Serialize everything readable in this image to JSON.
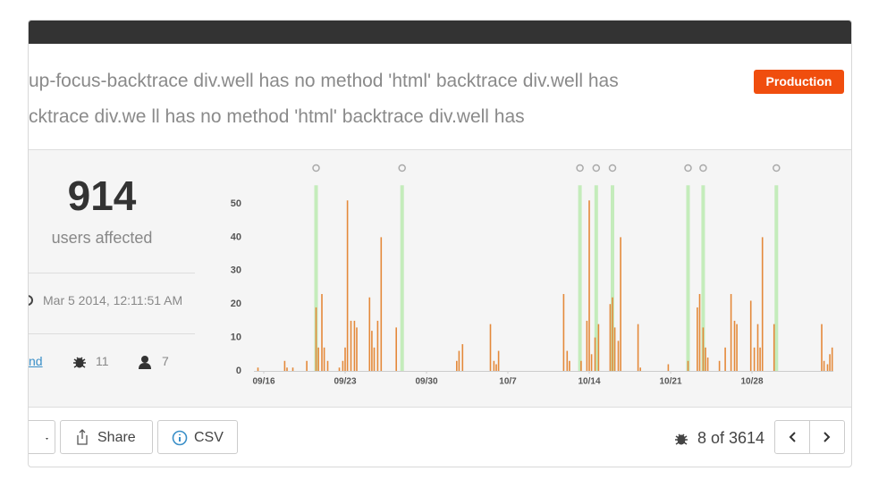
{
  "header": {
    "lines": [
      "up-focus-backtrace div.well has no method 'html' backtrace div.well has",
      "cktrace div.we ll has no method 'html' backtrace div.well has"
    ],
    "badge": "Production"
  },
  "summary": {
    "count": "914",
    "count_label": "users affected",
    "date": "Mar 5 2014, 12:11:51 AM",
    "link": "nd",
    "bugs": "11",
    "users": "7"
  },
  "footer": {
    "share": "Share",
    "csv": "CSV",
    "position": "8 of 3614"
  },
  "chart_data": {
    "type": "bar",
    "x": [
      -0.5,
      1.8,
      2.0,
      2.5,
      3.7,
      4.5,
      4.7,
      5.0,
      5.2,
      5.5,
      6.5,
      6.8,
      7.0,
      7.2,
      7.5,
      7.8,
      8.0,
      9.1,
      9.3,
      9.5,
      9.8,
      10.1,
      11.4,
      16.6,
      16.8,
      17.1,
      19.5,
      19.8,
      20.0,
      20.2,
      25.8,
      26.1,
      26.3,
      27.3,
      27.8,
      28.0,
      28.2,
      28.5,
      28.8,
      29.8,
      30.0,
      30.2,
      30.5,
      30.7,
      32.2,
      32.4,
      34.8,
      36.5,
      37.3,
      37.5,
      37.8,
      38.0,
      38.2,
      39.2,
      39.7,
      40.2,
      40.5,
      40.7,
      41.9,
      42.2,
      42.5,
      42.7,
      42.9,
      43.9,
      48.0,
      48.2,
      48.5,
      48.7,
      48.9
    ],
    "values": [
      1,
      3,
      1,
      1,
      3,
      19,
      7,
      23,
      7,
      3,
      1,
      3,
      7,
      51,
      15,
      15,
      13,
      22,
      12,
      7,
      15,
      40,
      13,
      3,
      6,
      8,
      14,
      3,
      2,
      6,
      23,
      6,
      3,
      3,
      15,
      51,
      5,
      10,
      14,
      20,
      22,
      13,
      9,
      40,
      14,
      1,
      2,
      3,
      19,
      23,
      13,
      7,
      4,
      3,
      7,
      23,
      15,
      14,
      21,
      7,
      14,
      7,
      40,
      14,
      14,
      3,
      2,
      5,
      7
    ],
    "color": "#e4893a",
    "deploys": [
      4.5,
      11.9,
      27.2,
      28.6,
      30.0,
      36.5,
      37.8,
      44.1
    ],
    "deploy_color": "#c4ecbb",
    "xlim": [
      -0.8,
      49.2
    ],
    "xticks": [
      {
        "value": 0,
        "label": "09/16"
      },
      {
        "value": 7,
        "label": "09/23"
      },
      {
        "value": 14,
        "label": "09/30"
      },
      {
        "value": 21,
        "label": "10/7"
      },
      {
        "value": 28,
        "label": "10/14"
      },
      {
        "value": 35,
        "label": "10/21"
      },
      {
        "value": 42,
        "label": "10/28"
      }
    ],
    "ylim": [
      0,
      55
    ],
    "yticks": [
      0,
      10,
      20,
      30,
      40,
      50
    ],
    "grid": false
  }
}
